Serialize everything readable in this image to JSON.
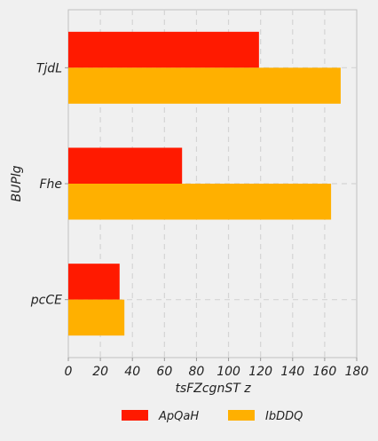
{
  "chart_data": {
    "type": "bar",
    "orientation": "horizontal",
    "categories": [
      "TjdL",
      "Fhe",
      "pcCE"
    ],
    "series": [
      {
        "name": "ApQaH",
        "color": "#ff1a00",
        "values": [
          119,
          71,
          32
        ]
      },
      {
        "name": "IbDDQ",
        "color": "#ffb000",
        "values": [
          170,
          164,
          35
        ]
      }
    ],
    "xlabel": "tsFZcgnST z",
    "ylabel": "BUPlg",
    "xlim": [
      0,
      180
    ],
    "xticks": [
      0,
      20,
      40,
      60,
      80,
      100,
      120,
      140,
      160,
      180
    ],
    "grid": true,
    "legend_position": "bottom"
  }
}
